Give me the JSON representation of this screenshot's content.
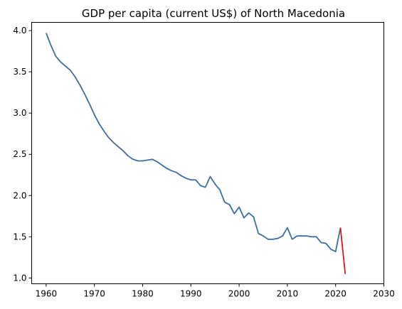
{
  "chart_data": {
    "type": "line",
    "title": "GDP per capita (current US$) of North Macedonia",
    "xlabel": "",
    "ylabel": "",
    "xlim": [
      1957,
      2030
    ],
    "ylim": [
      0.93,
      4.1
    ],
    "xticks": [
      1960,
      1970,
      1980,
      1990,
      2000,
      2010,
      2020,
      2030
    ],
    "yticks": [
      1.0,
      1.5,
      2.0,
      2.5,
      3.0,
      3.5,
      4.0
    ],
    "ytick_labels": [
      "1.0",
      "1.5",
      "2.0",
      "2.5",
      "3.0",
      "3.5",
      "4.0"
    ],
    "grid": false,
    "series": [
      {
        "color": "#3a6ea5",
        "x": [
          1960,
          1961,
          1962,
          1963,
          1964,
          1965,
          1966,
          1967,
          1968,
          1969,
          1970,
          1971,
          1972,
          1973,
          1974,
          1975,
          1976,
          1977,
          1978,
          1979,
          1980,
          1981,
          1982,
          1983,
          1984,
          1985,
          1986,
          1987,
          1988,
          1989,
          1990,
          1991,
          1992,
          1993,
          1994,
          1995,
          1996,
          1997,
          1998,
          1999,
          2000,
          2001,
          2002,
          2003,
          2004,
          2005,
          2006,
          2007,
          2008,
          2009,
          2010,
          2011,
          2012,
          2013,
          2014,
          2015,
          2016,
          2017,
          2018,
          2019,
          2020,
          2021
        ],
        "y": [
          3.97,
          3.82,
          3.69,
          3.62,
          3.57,
          3.52,
          3.44,
          3.34,
          3.23,
          3.11,
          2.98,
          2.87,
          2.78,
          2.7,
          2.64,
          2.59,
          2.54,
          2.48,
          2.44,
          2.42,
          2.42,
          2.43,
          2.44,
          2.41,
          2.37,
          2.33,
          2.3,
          2.28,
          2.24,
          2.21,
          2.19,
          2.19,
          2.12,
          2.1,
          2.23,
          2.14,
          2.07,
          1.92,
          1.89,
          1.78,
          1.86,
          1.73,
          1.79,
          1.74,
          1.54,
          1.51,
          1.47,
          1.47,
          1.48,
          1.51,
          1.61,
          1.47,
          1.51,
          1.51,
          1.51,
          1.5,
          1.5,
          1.43,
          1.42,
          1.35,
          1.32,
          1.61
        ]
      },
      {
        "color": "#e0141e",
        "x": [
          2021,
          2022
        ],
        "y": [
          1.61,
          1.05
        ]
      }
    ]
  }
}
